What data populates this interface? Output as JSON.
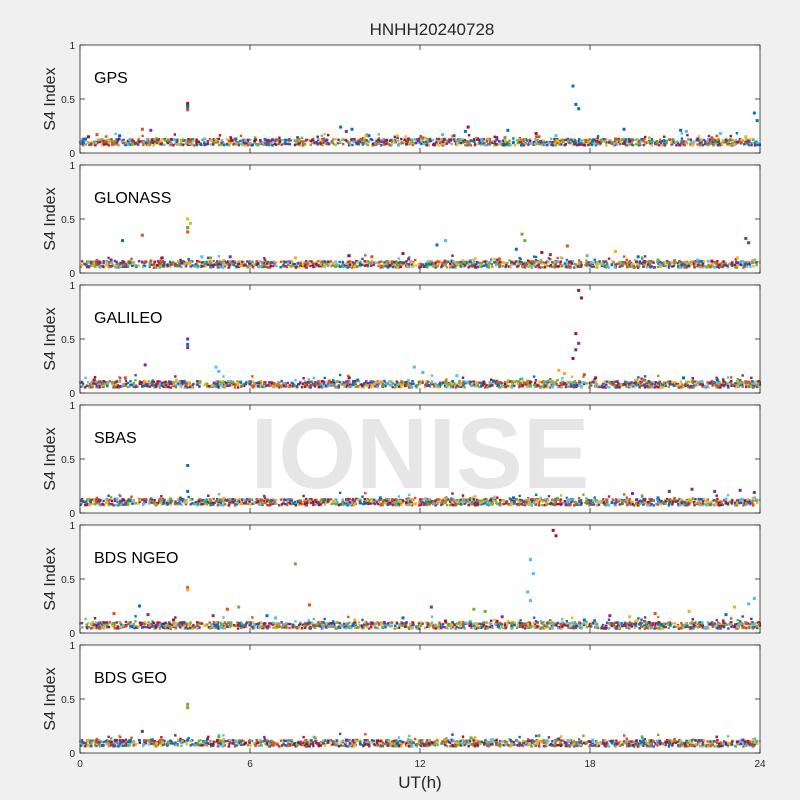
{
  "figure": {
    "title": "HNHH20240728",
    "watermark": "IONISE",
    "xlabel": "UT(h)",
    "ylabel": "S4 Index"
  },
  "colors": {
    "background": "#f0f0f0",
    "axes_background": "#ffffff",
    "watermark": "#e6e6e6",
    "palette": [
      "#0072BD",
      "#D95319",
      "#EDB120",
      "#7E2F8E",
      "#77AC30",
      "#4DBEEE",
      "#A2142F"
    ]
  },
  "chart_data": [
    {
      "type": "scatter",
      "panel_label": "GPS",
      "xlim": [
        0,
        24
      ],
      "ylim": [
        0,
        1
      ],
      "xticks": [
        0,
        6,
        12,
        18,
        24
      ],
      "yticks": [
        0,
        0.5,
        1
      ],
      "ytick_labels": [
        "0",
        "0.5",
        "1"
      ],
      "grid": false,
      "baseline": 0.1,
      "series": [
        {
          "points": [
            [
              0.2,
              0.13
            ],
            [
              1.4,
              0.16
            ],
            [
              3.8,
              0.44
            ],
            [
              3.8,
              0.42
            ],
            [
              5.5,
              0.13
            ],
            [
              9.2,
              0.24
            ],
            [
              9.6,
              0.22
            ],
            [
              10.2,
              0.16
            ],
            [
              13.6,
              0.2
            ],
            [
              15.1,
              0.21
            ],
            [
              17.4,
              0.62
            ],
            [
              17.5,
              0.45
            ],
            [
              17.6,
              0.41
            ],
            [
              19.2,
              0.22
            ],
            [
              21.2,
              0.21
            ],
            [
              23.8,
              0.37
            ],
            [
              23.9,
              0.3
            ]
          ]
        },
        {
          "points": [
            [
              0.6,
              0.17
            ],
            [
              2.2,
              0.22
            ],
            [
              3.8,
              0.4
            ],
            [
              8.6,
              0.13
            ],
            [
              12.1,
              0.14
            ],
            [
              16.2,
              0.15
            ],
            [
              18.9,
              0.13
            ],
            [
              22.3,
              0.14
            ]
          ]
        },
        {
          "points": [
            [
              1.0,
              0.12
            ],
            [
              4.8,
              0.12
            ],
            [
              10.1,
              0.16
            ],
            [
              14.4,
              0.13
            ],
            [
              20.1,
              0.14
            ],
            [
              23.5,
              0.15
            ]
          ]
        },
        {
          "points": [
            [
              2.5,
              0.21
            ],
            [
              6.8,
              0.12
            ],
            [
              9.4,
              0.2
            ],
            [
              11.6,
              0.13
            ],
            [
              13.2,
              0.16
            ],
            [
              21.8,
              0.13
            ]
          ]
        },
        {
          "points": [
            [
              3.1,
              0.12
            ],
            [
              7.7,
              0.11
            ],
            [
              15.0,
              0.14
            ],
            [
              18.4,
              0.12
            ]
          ]
        },
        {
          "points": [
            [
              4.4,
              0.13
            ],
            [
              12.8,
              0.17
            ],
            [
              16.8,
              0.16
            ],
            [
              21.4,
              0.2
            ],
            [
              22.6,
              0.18
            ]
          ]
        },
        {
          "points": [
            [
              0.3,
              0.15
            ],
            [
              3.8,
              0.46
            ],
            [
              8.2,
              0.12
            ],
            [
              13.7,
              0.24
            ],
            [
              16.1,
              0.18
            ],
            [
              19.4,
              0.11
            ]
          ]
        }
      ]
    },
    {
      "type": "scatter",
      "panel_label": "GLONASS",
      "xlim": [
        0,
        24
      ],
      "ylim": [
        0,
        1
      ],
      "xticks": [
        0,
        6,
        12,
        18,
        24
      ],
      "yticks": [
        0,
        0.5,
        1
      ],
      "ytick_labels": [
        "0",
        "0.5",
        "1"
      ],
      "grid": false,
      "baseline": 0.08,
      "series": [
        {
          "points": [
            [
              1.5,
              0.3
            ],
            [
              3.8,
              0.42
            ],
            [
              12.6,
              0.26
            ],
            [
              15.4,
              0.22
            ],
            [
              19.7,
              0.15
            ]
          ]
        },
        {
          "points": [
            [
              2.2,
              0.35
            ],
            [
              3.8,
              0.38
            ],
            [
              10.3,
              0.15
            ],
            [
              14.8,
              0.13
            ],
            [
              17.2,
              0.25
            ]
          ]
        },
        {
          "points": [
            [
              3.8,
              0.5
            ],
            [
              3.9,
              0.46
            ],
            [
              7.6,
              0.14
            ],
            [
              18.9,
              0.2
            ],
            [
              23.2,
              0.14
            ]
          ]
        },
        {
          "points": [
            [
              1.1,
              0.12
            ],
            [
              5.3,
              0.15
            ],
            [
              11.6,
              0.13
            ],
            [
              16.6,
              0.17
            ],
            [
              23.5,
              0.32
            ],
            [
              23.6,
              0.28
            ]
          ]
        },
        {
          "points": [
            [
              3.8,
              0.42
            ],
            [
              15.6,
              0.36
            ],
            [
              15.7,
              0.3
            ],
            [
              4.6,
              0.14
            ],
            [
              20.4,
              0.12
            ]
          ]
        },
        {
          "points": [
            [
              4.3,
              0.15
            ],
            [
              12.9,
              0.3
            ],
            [
              17.9,
              0.16
            ],
            [
              21.8,
              0.12
            ]
          ]
        },
        {
          "points": [
            [
              2.9,
              0.14
            ],
            [
              9.5,
              0.16
            ],
            [
              11.4,
              0.18
            ],
            [
              16.3,
              0.19
            ],
            [
              22.3,
              0.11
            ]
          ]
        }
      ]
    },
    {
      "type": "scatter",
      "panel_label": "GALILEO",
      "xlim": [
        0,
        24
      ],
      "ylim": [
        0,
        1
      ],
      "xticks": [
        0,
        6,
        12,
        18,
        24
      ],
      "yticks": [
        0,
        0.5,
        1
      ],
      "ytick_labels": [
        "0",
        "0.5",
        "1"
      ],
      "grid": false,
      "baseline": 0.08,
      "series": [
        {
          "points": [
            [
              3.8,
              0.45
            ],
            [
              9.8,
              0.12
            ],
            [
              14.6,
              0.11
            ],
            [
              21.3,
              0.14
            ],
            [
              22.5,
              0.12
            ]
          ]
        },
        {
          "points": [
            [
              1.6,
              0.14
            ],
            [
              8.8,
              0.11
            ],
            [
              17.8,
              0.17
            ],
            [
              19.9,
              0.12
            ],
            [
              23.6,
              0.1
            ]
          ]
        },
        {
          "points": [
            [
              3.4,
              0.12
            ],
            [
              16.9,
              0.21
            ],
            [
              17.1,
              0.18
            ],
            [
              23.2,
              0.11
            ]
          ]
        },
        {
          "points": [
            [
              2.3,
              0.26
            ],
            [
              3.8,
              0.5
            ],
            [
              3.8,
              0.42
            ],
            [
              17.5,
              0.4
            ],
            [
              17.6,
              0.46
            ]
          ]
        },
        {
          "points": [
            [
              5.4,
              0.1
            ],
            [
              12.9,
              0.09
            ],
            [
              15.8,
              0.11
            ]
          ]
        },
        {
          "points": [
            [
              4.8,
              0.24
            ],
            [
              4.9,
              0.2
            ],
            [
              11.8,
              0.24
            ],
            [
              12.1,
              0.19
            ],
            [
              13.3,
              0.16
            ],
            [
              15.6,
              0.13
            ]
          ]
        },
        {
          "points": [
            [
              0.5,
              0.12
            ],
            [
              9.5,
              0.14
            ],
            [
              17.6,
              0.95
            ],
            [
              17.7,
              0.88
            ],
            [
              17.5,
              0.55
            ],
            [
              17.4,
              0.32
            ],
            [
              18.2,
              0.14
            ]
          ]
        }
      ]
    },
    {
      "type": "scatter",
      "panel_label": "SBAS",
      "xlim": [
        0,
        24
      ],
      "ylim": [
        0,
        1
      ],
      "xticks": [
        0,
        6,
        12,
        18,
        24
      ],
      "yticks": [
        0,
        0.5,
        1
      ],
      "ytick_labels": [
        "0",
        "0.5",
        "1"
      ],
      "grid": false,
      "baseline": 0.1,
      "series": [
        {
          "points": [
            [
              3.8,
              0.44
            ],
            [
              3.8,
              0.2
            ],
            [
              10.6,
              0.14
            ],
            [
              15.3,
              0.14
            ],
            [
              20.4,
              0.14
            ]
          ]
        },
        {
          "points": [
            [
              6.4,
              0.12
            ],
            [
              13.1,
              0.12
            ],
            [
              18.6,
              0.12
            ]
          ]
        },
        {
          "points": [
            [
              2.1,
              0.12
            ],
            [
              11.3,
              0.11
            ],
            [
              22.1,
              0.11
            ]
          ]
        },
        {
          "points": [
            [
              19.5,
              0.18
            ],
            [
              20.8,
              0.2
            ],
            [
              21.6,
              0.22
            ],
            [
              22.4,
              0.2
            ],
            [
              23.3,
              0.21
            ],
            [
              23.8,
              0.19
            ]
          ]
        },
        {
          "points": [
            [
              3.2,
              0.13
            ],
            [
              8.5,
              0.11
            ],
            [
              16.7,
              0.12
            ]
          ]
        },
        {
          "points": [
            [
              1.3,
              0.13
            ],
            [
              5.8,
              0.12
            ],
            [
              12.2,
              0.13
            ],
            [
              17.3,
              0.12
            ],
            [
              22.8,
              0.13
            ]
          ]
        },
        {
          "points": [
            [
              4.2,
              0.11
            ],
            [
              14.5,
              0.12
            ]
          ]
        }
      ]
    },
    {
      "type": "scatter",
      "panel_label": "BDS NGEO",
      "xlim": [
        0,
        24
      ],
      "ylim": [
        0,
        1
      ],
      "xticks": [
        0,
        6,
        12,
        18,
        24
      ],
      "yticks": [
        0,
        0.5,
        1
      ],
      "ytick_labels": [
        "0",
        "0.5",
        "1"
      ],
      "grid": false,
      "baseline": 0.07,
      "series": [
        {
          "points": [
            [
              2.1,
              0.25
            ],
            [
              6.6,
              0.16
            ],
            [
              11.4,
              0.14
            ],
            [
              17.8,
              0.12
            ],
            [
              22.8,
              0.17
            ]
          ]
        },
        {
          "points": [
            [
              1.2,
              0.18
            ],
            [
              3.8,
              0.42
            ],
            [
              5.2,
              0.22
            ],
            [
              8.1,
              0.26
            ],
            [
              20.3,
              0.18
            ]
          ]
        },
        {
          "points": [
            [
              3.8,
              0.4
            ],
            [
              9.7,
              0.12
            ],
            [
              19.4,
              0.15
            ],
            [
              21.5,
              0.2
            ],
            [
              23.1,
              0.24
            ]
          ]
        },
        {
          "points": [
            [
              2.4,
              0.17
            ],
            [
              4.7,
              0.16
            ],
            [
              12.4,
              0.24
            ],
            [
              14.9,
              0.15
            ],
            [
              18.7,
              0.16
            ]
          ]
        },
        {
          "points": [
            [
              7.6,
              0.64
            ],
            [
              5.6,
              0.24
            ],
            [
              13.9,
              0.22
            ],
            [
              14.3,
              0.2
            ]
          ]
        },
        {
          "points": [
            [
              15.9,
              0.68
            ],
            [
              16.0,
              0.55
            ],
            [
              15.8,
              0.38
            ],
            [
              15.9,
              0.3
            ],
            [
              6.9,
              0.14
            ],
            [
              23.8,
              0.32
            ],
            [
              23.6,
              0.27
            ]
          ]
        },
        {
          "points": [
            [
              16.7,
              0.95
            ],
            [
              16.8,
              0.9
            ],
            [
              3.3,
              0.12
            ],
            [
              10.3,
              0.09
            ],
            [
              12.9,
              0.11
            ]
          ]
        }
      ]
    },
    {
      "type": "scatter",
      "panel_label": "BDS GEO",
      "xlim": [
        0,
        24
      ],
      "ylim": [
        0,
        1
      ],
      "xticks": [
        0,
        6,
        12,
        18,
        24
      ],
      "yticks": [
        0,
        0.5,
        1
      ],
      "ytick_labels": [
        "0",
        "0.5",
        "1"
      ],
      "grid": false,
      "baseline": 0.09,
      "series": [
        {
          "points": [
            [
              3.8,
              0.12
            ],
            [
              11.2,
              0.09
            ],
            [
              19.8,
              0.1
            ]
          ]
        },
        {
          "points": [
            [
              6.2,
              0.07
            ],
            [
              14.7,
              0.08
            ],
            [
              21.6,
              0.07
            ]
          ]
        },
        {
          "points": [
            [
              2.7,
              0.09
            ],
            [
              12.6,
              0.1
            ],
            [
              22.9,
              0.09
            ]
          ]
        },
        {
          "points": [
            [
              2.2,
              0.2
            ],
            [
              4.5,
              0.13
            ],
            [
              9.4,
              0.12
            ],
            [
              16.9,
              0.13
            ],
            [
              23.4,
              0.12
            ]
          ]
        },
        {
          "points": [
            [
              3.8,
              0.45
            ],
            [
              3.8,
              0.42
            ],
            [
              4.9,
              0.15
            ],
            [
              8.3,
              0.14
            ],
            [
              13.8,
              0.14
            ],
            [
              16.2,
              0.16
            ]
          ]
        },
        {
          "points": [
            [
              5.5,
              0.11
            ],
            [
              18.1,
              0.12
            ]
          ]
        },
        {
          "points": [
            [
              1.1,
              0.1
            ],
            [
              10.5,
              0.11
            ],
            [
              20.7,
              0.1
            ]
          ]
        }
      ]
    }
  ]
}
